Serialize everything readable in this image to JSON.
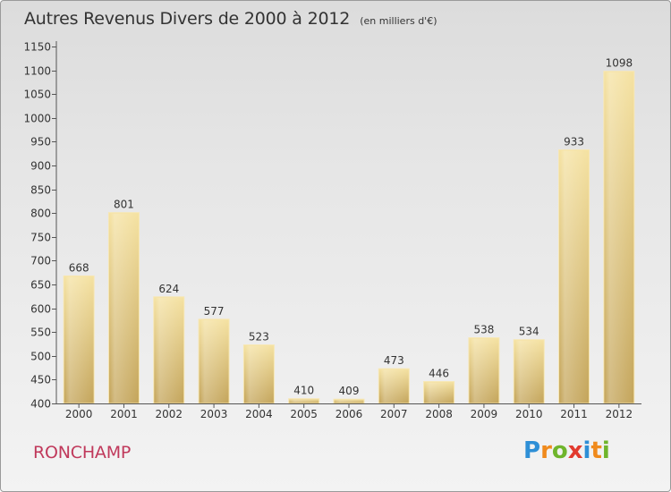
{
  "chart_title": "Autres Revenus Divers de 2000 à 2012",
  "chart_subtitle": "(en milliers d'€)",
  "place": "RONCHAMP",
  "brand": {
    "text": "Proxiti",
    "letter_colors": [
      "#2e8fd6",
      "#f08a1c",
      "#6fb52c",
      "#e23a2e",
      "#2e8fd6",
      "#f08a1c",
      "#6fb52c"
    ]
  },
  "colors": {
    "bar_light": "#f3dc98",
    "bar_dark": "#c7a85e",
    "axis": "#555555",
    "grid": "#cfcfcf",
    "text": "#333333",
    "place_text": "#c0395b"
  },
  "chart_data": {
    "type": "bar",
    "title": "Autres Revenus Divers de 2000 à 2012",
    "subtitle": "(en milliers d'€)",
    "categories": [
      "2000",
      "2001",
      "2002",
      "2003",
      "2004",
      "2005",
      "2006",
      "2007",
      "2008",
      "2009",
      "2010",
      "2011",
      "2012"
    ],
    "values": [
      668,
      801,
      624,
      577,
      523,
      410,
      409,
      473,
      446,
      538,
      534,
      933,
      1098
    ],
    "ylim": [
      400,
      1150
    ],
    "yticks": [
      400,
      450,
      500,
      550,
      600,
      650,
      700,
      750,
      800,
      850,
      900,
      950,
      1000,
      1050,
      1100,
      1150
    ],
    "grid": false,
    "data_labels": true
  }
}
